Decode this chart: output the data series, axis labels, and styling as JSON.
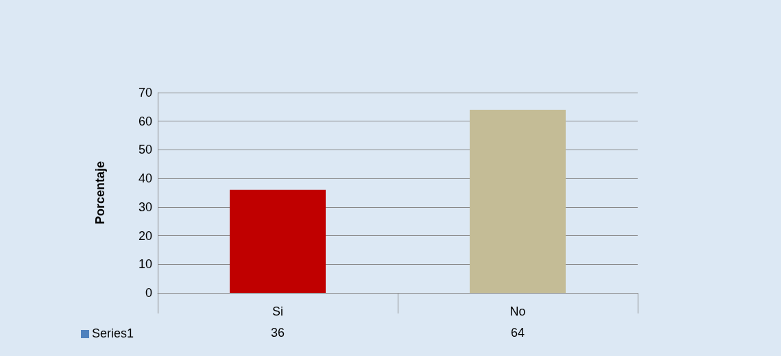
{
  "chart_data": {
    "type": "bar",
    "ylabel": "Porcentaje",
    "categories": [
      "Si",
      "No"
    ],
    "series": [
      {
        "name": "Series1",
        "color": "#4f81bd",
        "colors": [
          "#c00000",
          "#c4bc96"
        ],
        "values": [
          36,
          64
        ]
      }
    ],
    "ylim": [
      0,
      70
    ],
    "yticks": [
      0,
      10,
      20,
      30,
      40,
      50,
      60,
      70
    ],
    "grid": "y",
    "legend": "bottom left",
    "data_labels": true
  }
}
